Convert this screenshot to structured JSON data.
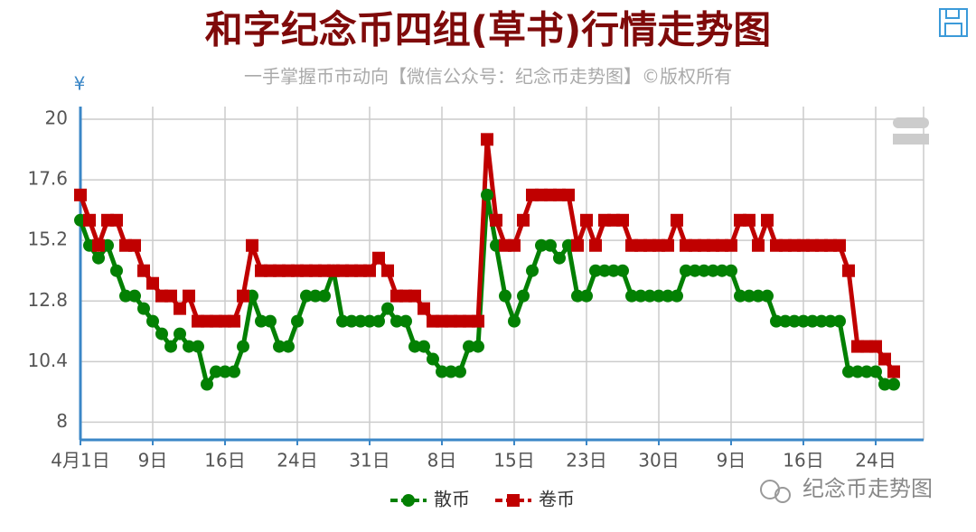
{
  "chart_data": {
    "type": "line",
    "title": "和字纪念币四组(草书)行情走势图",
    "subtitle": "一手掌握币市动向【微信公众号：纪念币走势图】©版权所有",
    "y_label": "¥",
    "watermark": "纪念币走势图",
    "categories": [
      "4月1日",
      null,
      null,
      null,
      null,
      null,
      null,
      null,
      "9日",
      null,
      null,
      null,
      null,
      null,
      null,
      null,
      "16日",
      null,
      null,
      null,
      null,
      null,
      null,
      null,
      "24日",
      null,
      null,
      null,
      null,
      null,
      null,
      null,
      "31日",
      null,
      null,
      null,
      null,
      null,
      null,
      null,
      "8日",
      null,
      null,
      null,
      null,
      null,
      null,
      null,
      "15日",
      null,
      null,
      null,
      null,
      null,
      null,
      null,
      "23日",
      null,
      null,
      null,
      null,
      null,
      null,
      null,
      "30日",
      null,
      null,
      null,
      null,
      null,
      null,
      null,
      "9日",
      null,
      null,
      null,
      null,
      null,
      null,
      null,
      "16日",
      null,
      null,
      null,
      null,
      null,
      null,
      null,
      "24日",
      null,
      null
    ],
    "series": [
      {
        "name": "散币",
        "color": "#038003",
        "marker": "circle",
        "values": [
          16,
          15,
          14.5,
          15,
          14,
          13,
          13,
          12.5,
          12,
          11.5,
          11,
          11.5,
          11,
          11,
          9.5,
          10,
          10,
          10,
          11,
          13,
          12,
          12,
          11,
          11,
          12,
          13,
          13,
          13,
          14,
          12,
          12,
          12,
          12,
          12,
          12.5,
          12,
          12,
          11,
          11,
          10.5,
          10,
          10,
          10,
          11,
          11,
          17,
          15,
          13,
          12,
          13,
          14,
          15,
          15,
          14.5,
          15,
          13,
          13,
          14,
          14,
          14,
          14,
          13,
          13,
          13,
          13,
          13,
          13,
          14,
          14,
          14,
          14,
          14,
          14,
          13,
          13,
          13,
          13,
          12,
          12,
          12,
          12,
          12,
          12,
          12,
          12,
          10,
          10,
          10,
          10,
          9.5,
          9.5
        ]
      },
      {
        "name": "卷币",
        "color": "#c00000",
        "marker": "square",
        "values": [
          17,
          16,
          15,
          16,
          16,
          15,
          15,
          14,
          13.5,
          13,
          13,
          12.5,
          13,
          12,
          12,
          12,
          12,
          12,
          13,
          15,
          14,
          14,
          14,
          14,
          14,
          14,
          14,
          14,
          14,
          14,
          14,
          14,
          14,
          14.5,
          14,
          13,
          13,
          13,
          12.5,
          12,
          12,
          12,
          12,
          12,
          12,
          19.2,
          16,
          15,
          15,
          16,
          17,
          17,
          17,
          17,
          17,
          15,
          16,
          15,
          16,
          16,
          16,
          15,
          15,
          15,
          15,
          15,
          16,
          15,
          15,
          15,
          15,
          15,
          15,
          16,
          16,
          15,
          16,
          15,
          15,
          15,
          15,
          15,
          15,
          15,
          15,
          14,
          11,
          11,
          11,
          10.5,
          10
        ]
      }
    ],
    "ylim": [
      7.3,
      20.5
    ],
    "yticks": [
      8,
      10.4,
      12.8,
      15.2,
      17.6,
      20
    ],
    "grid": true,
    "legend": "bottom"
  }
}
